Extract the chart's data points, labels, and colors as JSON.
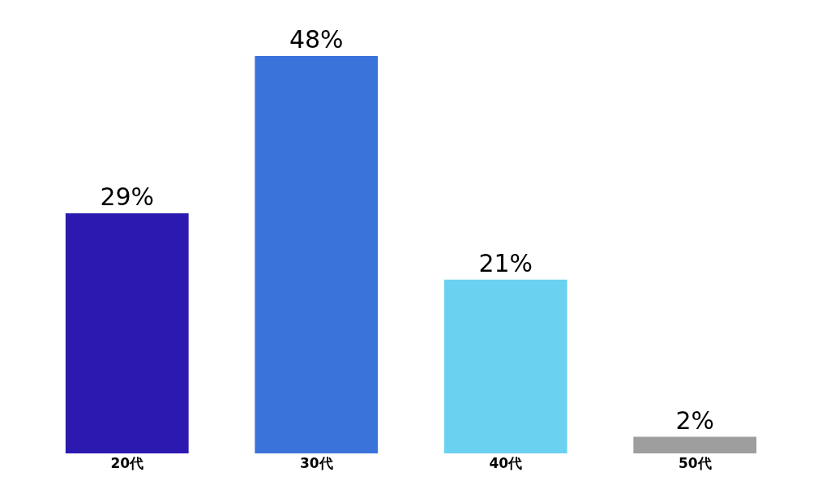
{
  "chart_data": {
    "type": "bar",
    "categories": [
      "20代",
      "30代",
      "40代",
      "50代"
    ],
    "values": [
      29,
      48,
      21,
      2
    ],
    "value_labels": [
      "29%",
      "48%",
      "21%",
      "2%"
    ],
    "colors": [
      "#2c19b0",
      "#3a74db",
      "#6bd1f0",
      "#9e9e9e"
    ]
  }
}
